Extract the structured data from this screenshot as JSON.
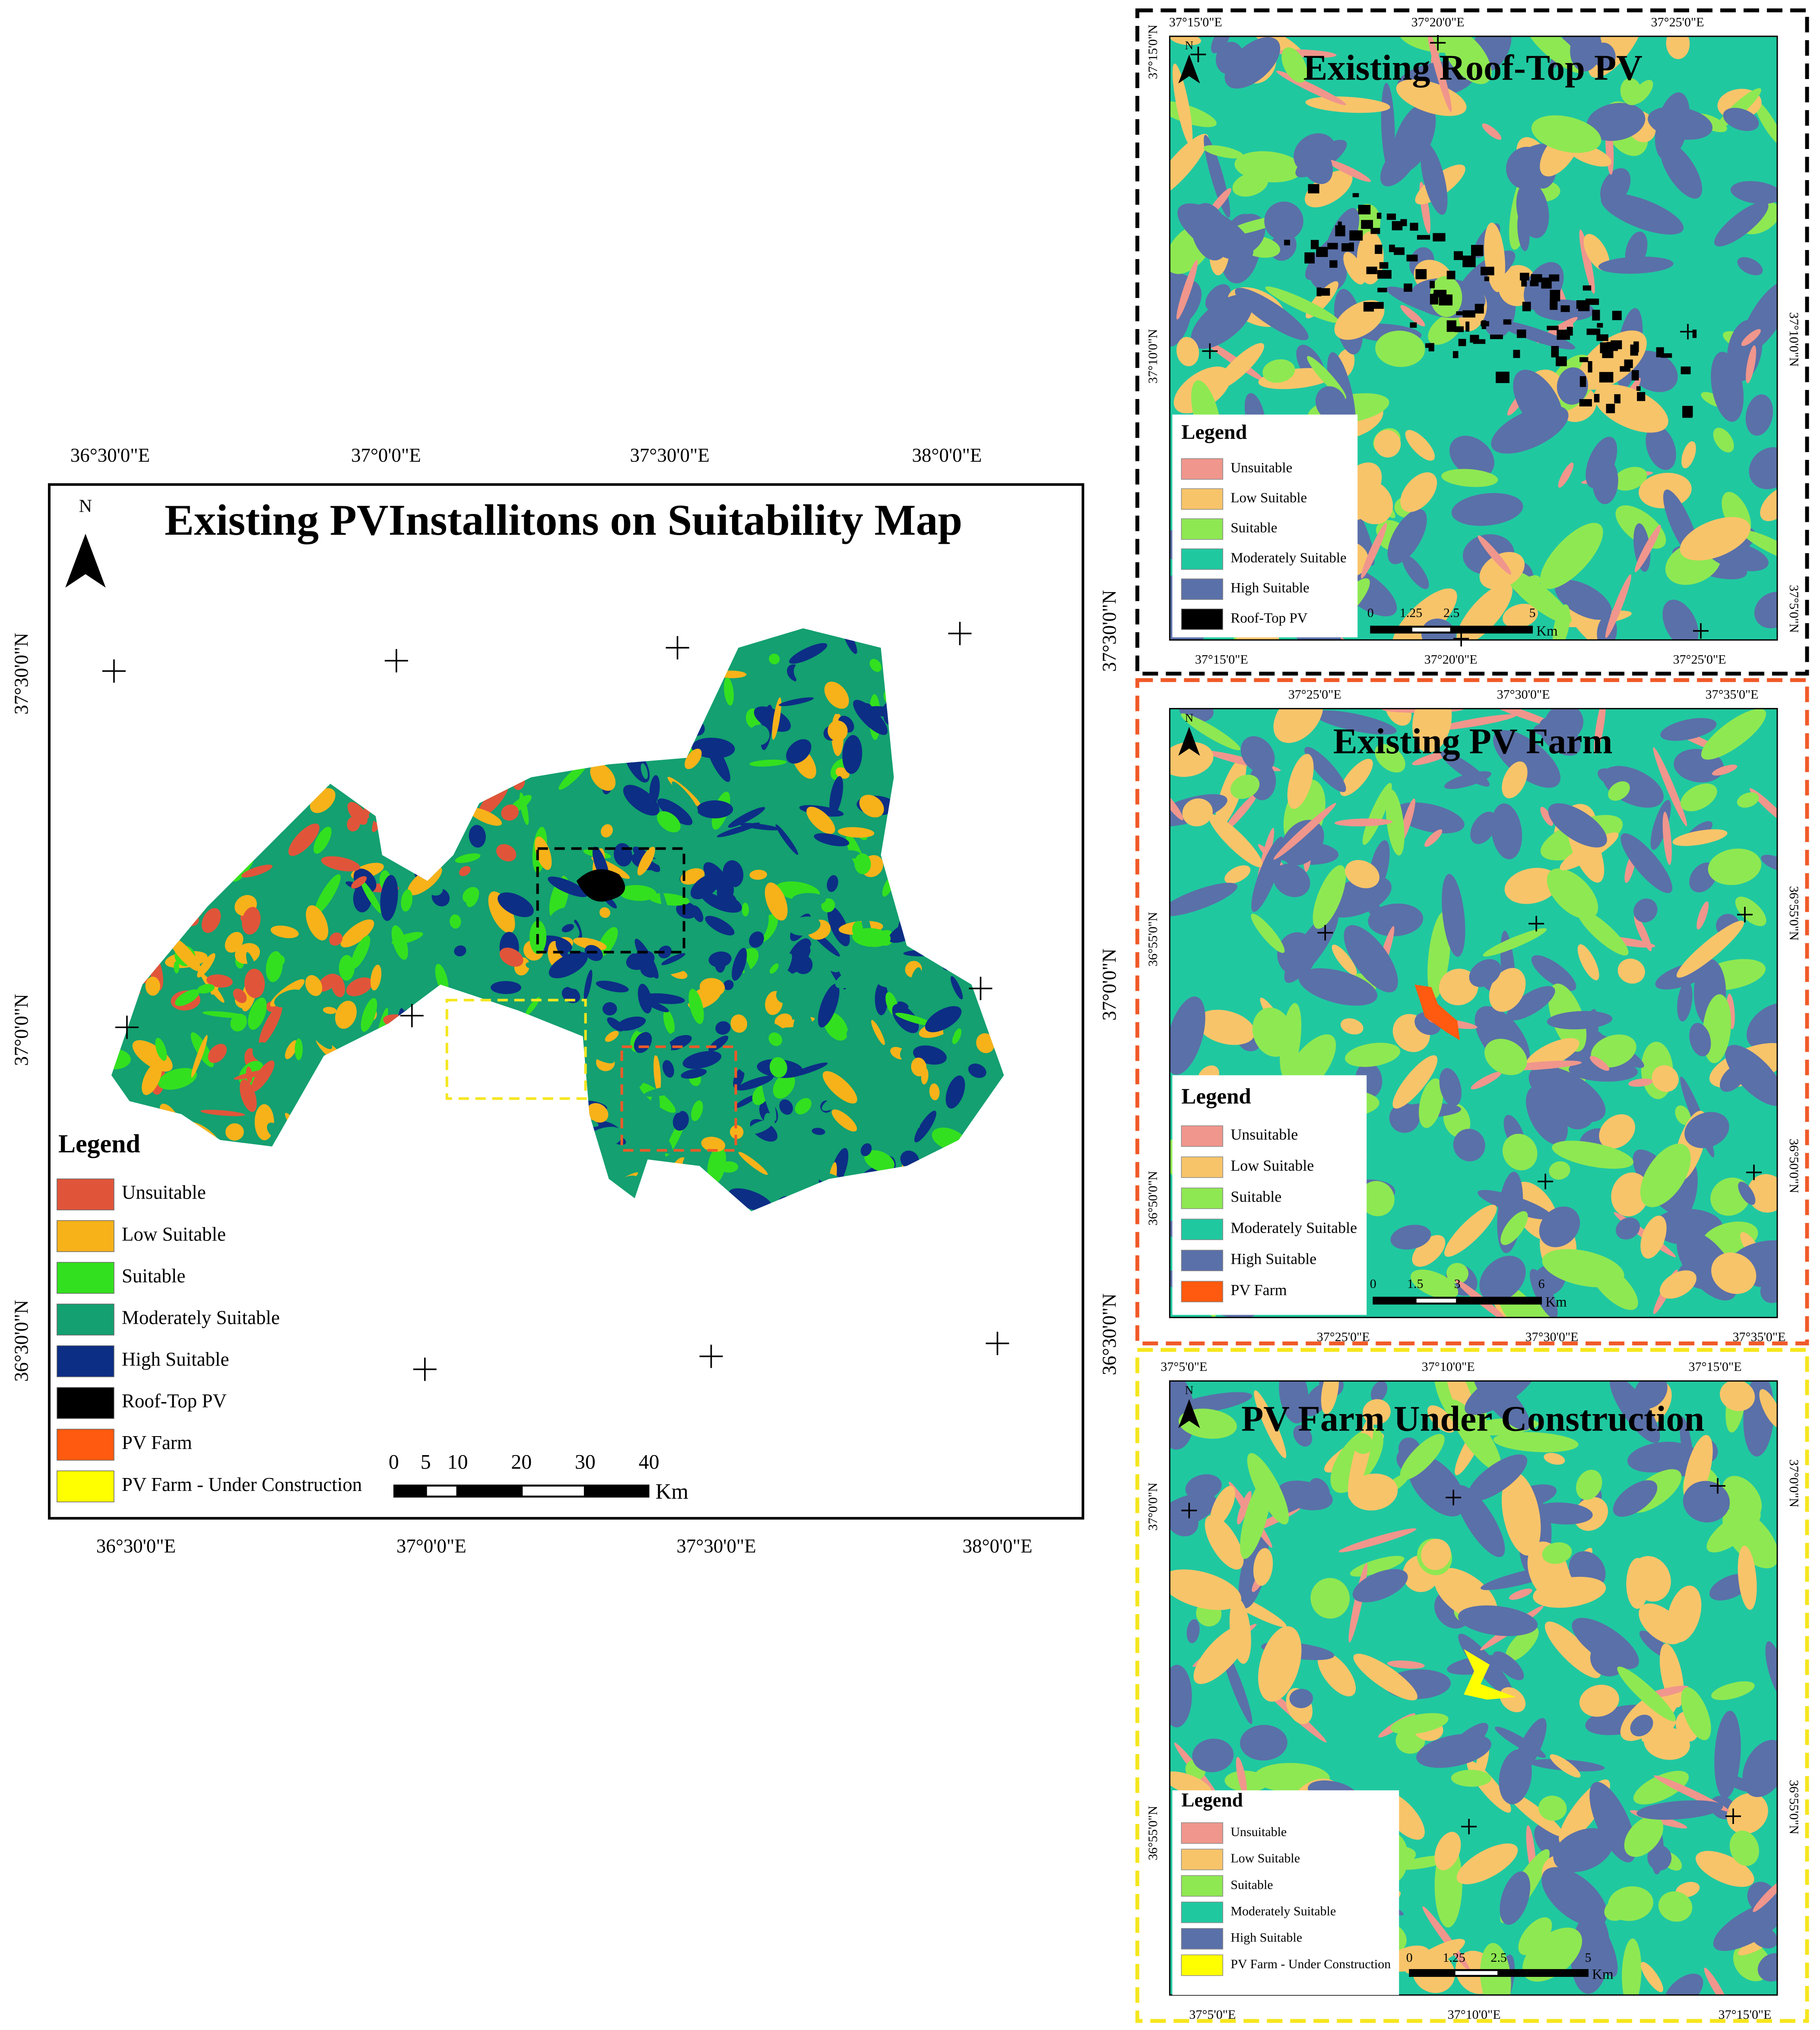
{
  "main_map": {
    "title": "Existing PVInstallitons on Suitability Map",
    "north": "N",
    "lon_labels_top": [
      "36°30'0\"E",
      "37°0'0\"E",
      "37°30'0\"E",
      "38°0'0\"E"
    ],
    "lon_labels_bottom": [
      "36°30'0\"E",
      "37°0'0\"E",
      "37°30'0\"E",
      "38°0'0\"E"
    ],
    "lat_labels_left": [
      "37°30'0\"N",
      "37°0'0\"N",
      "36°30'0\"N"
    ],
    "lat_labels_right": [
      "37°30'0\"N",
      "37°0'0\"N",
      "36°30'0\"N"
    ],
    "legend": {
      "title": "Legend",
      "items": [
        {
          "label": "Unsuitable",
          "color": "#e0553a"
        },
        {
          "label": "Low Suitable",
          "color": "#f7b21a"
        },
        {
          "label": "Suitable",
          "color": "#33e01f"
        },
        {
          "label": "Moderately Suitable",
          "color": "#14a070"
        },
        {
          "label": "High Suitable",
          "color": "#0c2e85"
        },
        {
          "label": "Roof-Top PV",
          "color": "#000000"
        },
        {
          "label": "PV Farm",
          "color": "#ff5a0f"
        },
        {
          "label": "PV Farm - Under Construction",
          "color": "#ffff00"
        }
      ]
    },
    "scale_bar": {
      "ticks": [
        0,
        5,
        10,
        20,
        30,
        40
      ],
      "unit": "Km"
    }
  },
  "insets": [
    {
      "title": "Existing Roof-Top PV",
      "frame_color": "#000000",
      "north": "N",
      "lon_labels_top": [
        "37°15'0\"E",
        "37°20'0\"E",
        "37°25'0\"E"
      ],
      "lon_labels_bottom": [
        "37°15'0\"E",
        "37°20'0\"E",
        "37°25'0\"E"
      ],
      "lat_labels_left": [
        "37°15'0\"N",
        "37°10'0\"N"
      ],
      "lat_labels_right": [
        "37°10'0\"N",
        "37°5'0\"N"
      ],
      "legend": {
        "title": "Legend",
        "items": [
          {
            "label": "Unsuitable",
            "color": "#f0968c"
          },
          {
            "label": "Low Suitable",
            "color": "#f8c46a"
          },
          {
            "label": "Suitable",
            "color": "#8ee852"
          },
          {
            "label": "Moderately Suitable",
            "color": "#20c8a0"
          },
          {
            "label": "High Suitable",
            "color": "#5a70a8"
          },
          {
            "label": "Roof-Top PV",
            "color": "#000000"
          }
        ]
      },
      "scale_bar": {
        "ticks": [
          0,
          1.25,
          2.5,
          5
        ],
        "unit": "Km"
      }
    },
    {
      "title": "Existing PV Farm",
      "frame_color": "#f05a28",
      "north": "N",
      "lon_labels_top": [
        "37°25'0\"E",
        "37°30'0\"E",
        "37°35'0\"E"
      ],
      "lon_labels_bottom": [
        "37°25'0\"E",
        "37°30'0\"E",
        "37°35'0\"E"
      ],
      "lat_labels_left": [
        "36°55'0\"N",
        "36°50'0\"N"
      ],
      "lat_labels_right": [
        "36°55'0\"N",
        "36°50'0\"N"
      ],
      "legend": {
        "title": "Legend",
        "items": [
          {
            "label": "Unsuitable",
            "color": "#f0968c"
          },
          {
            "label": "Low Suitable",
            "color": "#f8c46a"
          },
          {
            "label": "Suitable",
            "color": "#8ee852"
          },
          {
            "label": "Moderately Suitable",
            "color": "#20c8a0"
          },
          {
            "label": "High Suitable",
            "color": "#5a70a8"
          },
          {
            "label": "PV Farm",
            "color": "#ff5a0f"
          }
        ]
      },
      "scale_bar": {
        "ticks": [
          0,
          1.5,
          3,
          6
        ],
        "unit": "Km"
      }
    },
    {
      "title": "PV Farm Under Construction",
      "frame_color": "#f5e61e",
      "north": "N",
      "lon_labels_top": [
        "37°5'0\"E",
        "37°10'0\"E",
        "37°15'0\"E"
      ],
      "lon_labels_bottom": [
        "37°5'0\"E",
        "37°10'0\"E",
        "37°15'0\"E"
      ],
      "lat_labels_left": [
        "37°0'0\"N",
        "36°55'0\"N"
      ],
      "lat_labels_right": [
        "37°0'0\"N",
        "36°55'0\"N"
      ],
      "legend": {
        "title": "Legend",
        "items": [
          {
            "label": "Unsuitable",
            "color": "#f0968c"
          },
          {
            "label": "Low Suitable",
            "color": "#f8c46a"
          },
          {
            "label": "Suitable",
            "color": "#8ee852"
          },
          {
            "label": "Moderately Suitable",
            "color": "#20c8a0"
          },
          {
            "label": "High Suitable",
            "color": "#5a70a8"
          },
          {
            "label": "PV Farm - Under Construction",
            "color": "#ffff00"
          }
        ]
      },
      "scale_bar": {
        "ticks": [
          0,
          1.25,
          2.5,
          5
        ],
        "unit": "Km"
      }
    }
  ]
}
